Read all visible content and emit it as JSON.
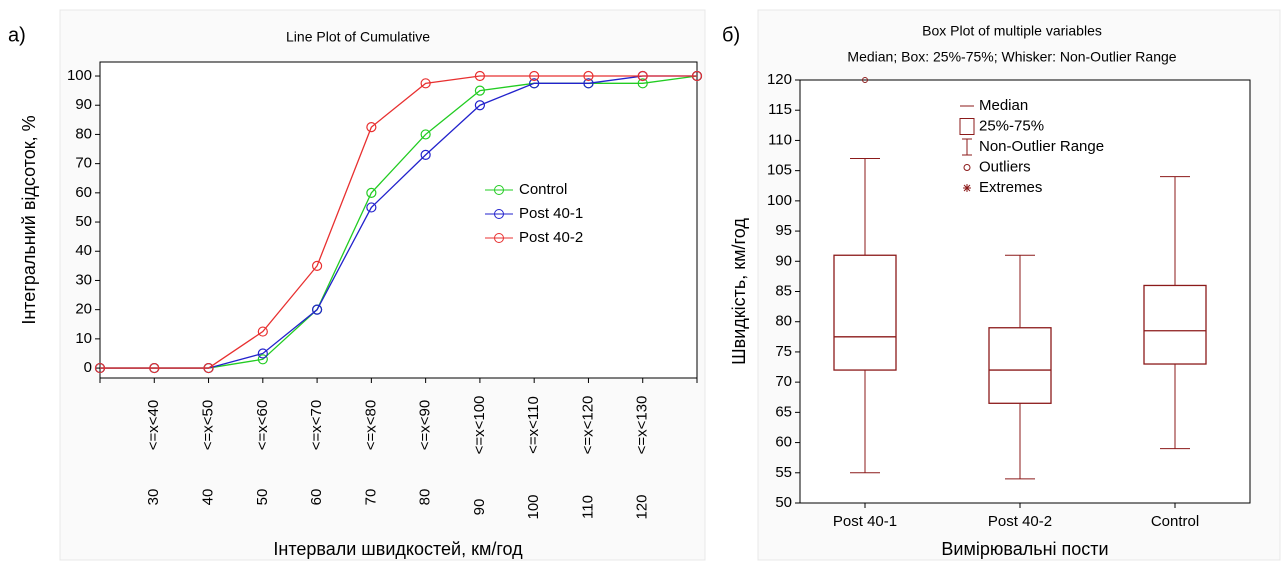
{
  "chart_data": [
    {
      "type": "line",
      "panel_label": "а)",
      "title": "Line Plot of Cumulative",
      "xlabel": "Інтервали швидкостей, км/год",
      "ylabel": "Інтегральний відсоток, %",
      "categories": [
        null,
        "<=x<40",
        "<=x<50",
        "<=x<60",
        "<=x<70",
        "<=x<80",
        "<=x<90",
        "<=x<100",
        "<=x<110",
        "<=x<120",
        "<=x<130",
        null
      ],
      "category_lower": [
        null,
        "30",
        "40",
        "50",
        "60",
        "70",
        "80",
        "90",
        "100",
        "110",
        "120",
        null
      ],
      "series": [
        {
          "name": "Control",
          "color": "#22cc22",
          "values": [
            0,
            0,
            0,
            3,
            20,
            60,
            80,
            95,
            97.5,
            97.5,
            97.5,
            100
          ]
        },
        {
          "name": "Post 40-1",
          "color": "#2222cc",
          "values": [
            0,
            0,
            0,
            5,
            20,
            55,
            73,
            90,
            97.5,
            97.5,
            100,
            100
          ]
        },
        {
          "name": "Post 40-2",
          "color": "#e83030",
          "values": [
            0,
            0,
            0,
            12.5,
            35,
            82.5,
            97.5,
            100,
            100,
            100,
            100,
            100
          ]
        }
      ],
      "ylim": [
        -3.4,
        104.8
      ],
      "yticks": [
        0,
        10,
        20,
        30,
        40,
        50,
        60,
        70,
        80,
        90,
        100
      ],
      "legend": "center right"
    },
    {
      "type": "box",
      "panel_label": "б)",
      "title": "Box Plot of multiple variables",
      "subtitle": "Median; Box: 25%-75%; Whisker: Non-Outlier Range",
      "xlabel": "Вимірювальні пости",
      "ylabel": "Швидкість, км/год",
      "categories": [
        "Post 40-1",
        "Post 40-2",
        "Control"
      ],
      "min": [
        55,
        54,
        59
      ],
      "q1": [
        72,
        66.5,
        73
      ],
      "median": [
        77.5,
        72,
        78.5
      ],
      "q3": [
        91,
        79,
        86
      ],
      "max": [
        107,
        91,
        104
      ],
      "outliers": [
        [
          120
        ],
        [],
        []
      ],
      "color": "#8b1a1a",
      "legend_entries": [
        "Median",
        "25%-75%",
        "Non-Outlier Range",
        "Outliers",
        "Extremes"
      ],
      "ylim": [
        50,
        120
      ],
      "yticks": [
        50,
        55,
        60,
        65,
        70,
        75,
        80,
        85,
        90,
        95,
        100,
        105,
        110,
        115,
        120
      ]
    }
  ]
}
